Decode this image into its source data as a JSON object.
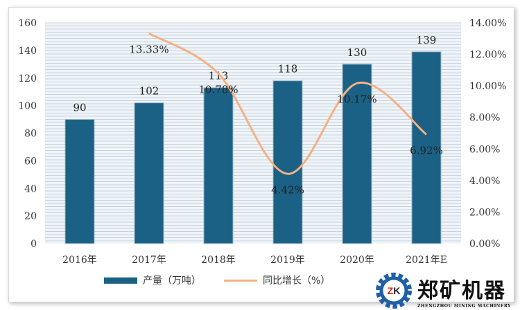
{
  "chart_data": {
    "type": "bar+line",
    "categories": [
      "2016年",
      "2017年",
      "2018年",
      "2019年",
      "2020年",
      "2021年E"
    ],
    "series": [
      {
        "name": "产量（万吨）",
        "type": "bar",
        "axis": "left",
        "values": [
          90,
          102,
          113,
          118,
          130,
          139
        ],
        "labels": [
          "90",
          "102",
          "113",
          "118",
          "130",
          "139"
        ],
        "color": "#1a6185"
      },
      {
        "name": "同比增长（%）",
        "type": "line",
        "axis": "right",
        "values": [
          null,
          13.33,
          10.78,
          4.42,
          10.17,
          6.92
        ],
        "labels": [
          "",
          "13.33%",
          "10.78%",
          "4.42%",
          "10.17%",
          "6.92%"
        ],
        "color": "#f4b183"
      }
    ],
    "left_axis": {
      "range": [
        0,
        160
      ],
      "ticks": [
        "0",
        "20",
        "40",
        "60",
        "80",
        "100",
        "120",
        "140",
        "160"
      ]
    },
    "right_axis": {
      "range": [
        0,
        14
      ],
      "ticks": [
        "0.00%",
        "2.00%",
        "4.00%",
        "6.00%",
        "8.00%",
        "10.00%",
        "12.00%",
        "14.00%"
      ]
    },
    "grid": true,
    "legend": "bottom"
  },
  "logo": {
    "mark": "ZK",
    "name": "郑矿机器",
    "sub": "ZHENGZHOU MINING MACHINERY"
  }
}
